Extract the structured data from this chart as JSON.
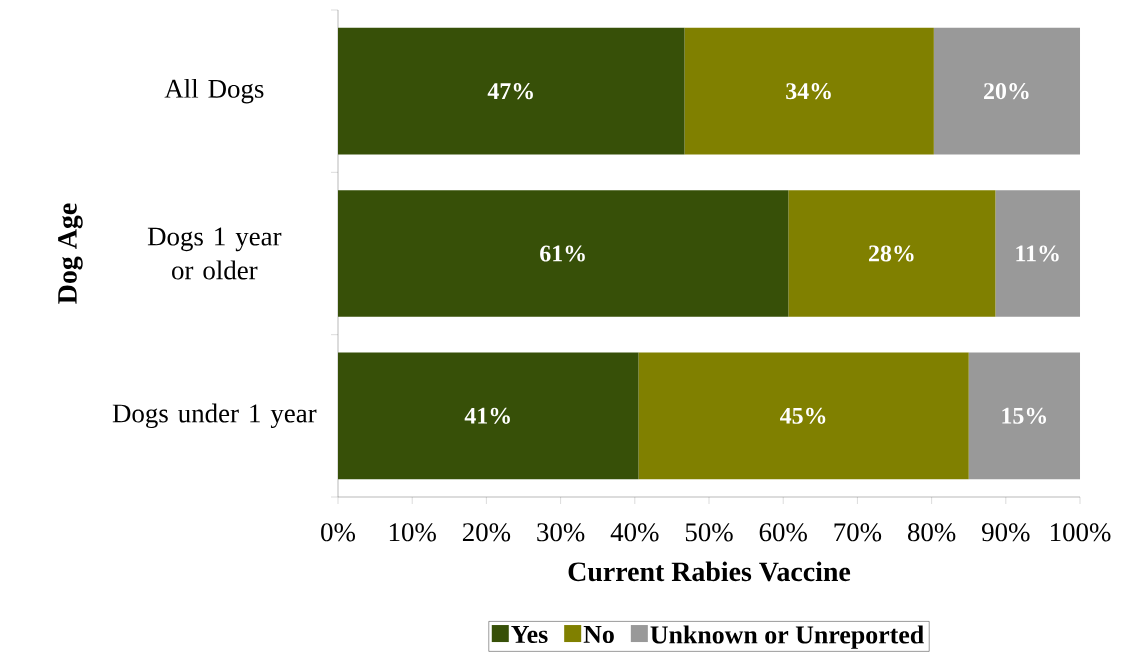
{
  "chart_data": {
    "type": "bar",
    "orientation": "horizontal",
    "stacked": true,
    "xlabel": "Current Rabies Vaccine",
    "ylabel": "Dog Age",
    "categories": [
      "All Dogs",
      "Dogs 1 year or older",
      "Dogs under 1 year"
    ],
    "series": [
      {
        "name": "Yes",
        "color": "#375008",
        "values": [
          46.7,
          60.7,
          40.5
        ],
        "value_labels": [
          "47%",
          "61%",
          "41%"
        ]
      },
      {
        "name": "No",
        "color": "#808000",
        "values": [
          33.6,
          27.9,
          44.5
        ],
        "value_labels": [
          "34%",
          "28%",
          "45%"
        ]
      },
      {
        "name": "Unknown or Unreported",
        "color": "#999999",
        "values": [
          19.7,
          11.4,
          15.0
        ],
        "value_labels": [
          "20%",
          "11%",
          "15%"
        ]
      }
    ],
    "xlim": [
      0,
      100
    ],
    "xticks": [
      {
        "value": 0,
        "label": "0%"
      },
      {
        "value": 10,
        "label": "10%"
      },
      {
        "value": 20,
        "label": "20%"
      },
      {
        "value": 30,
        "label": "30%"
      },
      {
        "value": 40,
        "label": "40%"
      },
      {
        "value": 50,
        "label": "50%"
      },
      {
        "value": 60,
        "label": "60%"
      },
      {
        "value": 70,
        "label": "70%"
      },
      {
        "value": 80,
        "label": "80%"
      },
      {
        "value": 90,
        "label": "90%"
      },
      {
        "value": 100,
        "label": "100%"
      }
    ],
    "legend": "bottom",
    "grid": false
  }
}
